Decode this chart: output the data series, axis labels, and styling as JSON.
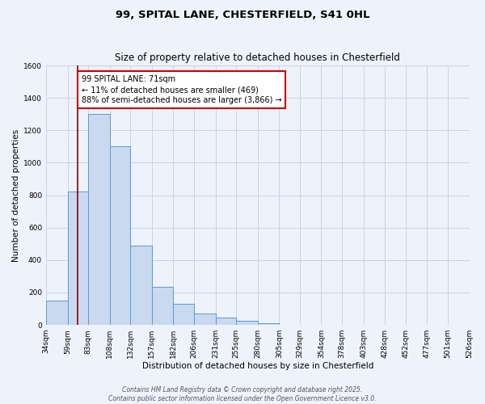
{
  "title_line1": "99, SPITAL LANE, CHESTERFIELD, S41 0HL",
  "title_line2": "Size of property relative to detached houses in Chesterfield",
  "xlabel": "Distribution of detached houses by size in Chesterfield",
  "ylabel": "Number of detached properties",
  "bar_values": [
    150,
    825,
    1300,
    1100,
    490,
    235,
    130,
    70,
    47,
    25,
    10,
    2,
    1,
    0,
    0,
    0,
    0,
    0,
    0,
    0
  ],
  "bin_edges": [
    34,
    59,
    83,
    108,
    132,
    157,
    182,
    206,
    231,
    255,
    280,
    305,
    329,
    354,
    378,
    403,
    428,
    452,
    477,
    501,
    526
  ],
  "x_labels": [
    "34sqm",
    "59sqm",
    "83sqm",
    "108sqm",
    "132sqm",
    "157sqm",
    "182sqm",
    "206sqm",
    "231sqm",
    "255sqm",
    "280sqm",
    "305sqm",
    "329sqm",
    "354sqm",
    "378sqm",
    "403sqm",
    "428sqm",
    "452sqm",
    "477sqm",
    "501sqm",
    "526sqm"
  ],
  "bar_color": "#c9d9f0",
  "bar_edge_color": "#5b9bd5",
  "vline_x": 71,
  "vline_color": "#8b0000",
  "annotation_line1": "99 SPITAL LANE: 71sqm",
  "annotation_line2": "← 11% of detached houses are smaller (469)",
  "annotation_line3": "88% of semi-detached houses are larger (3,866) →",
  "annotation_box_color": "#ffffff",
  "annotation_box_edge": "#cc0000",
  "ylim": [
    0,
    1600
  ],
  "yticks": [
    0,
    200,
    400,
    600,
    800,
    1000,
    1200,
    1400,
    1600
  ],
  "footnote1": "Contains HM Land Registry data © Crown copyright and database right 2025.",
  "footnote2": "Contains public sector information licensed under the Open Government Licence v3.0.",
  "background_color": "#eef2fa",
  "grid_color": "#c8d4e8",
  "title_fontsize": 9.5,
  "subtitle_fontsize": 8.5,
  "axis_label_fontsize": 7.5,
  "tick_fontsize": 6.5,
  "annotation_fontsize": 7,
  "footnote_fontsize": 5.5
}
